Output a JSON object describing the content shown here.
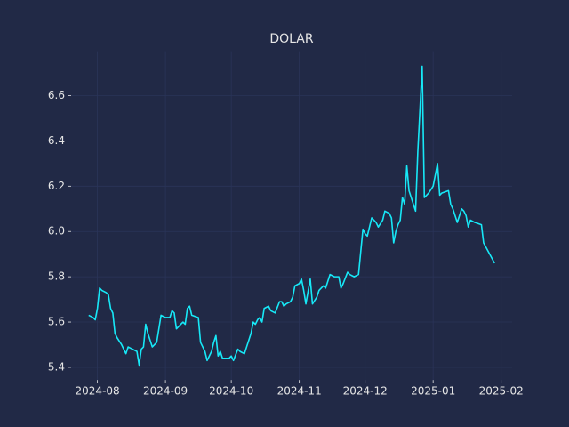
{
  "chart_data": {
    "type": "line",
    "title": "DOLAR",
    "x": [
      "2024-07-28",
      "2024-07-30",
      "2024-07-31",
      "2024-08-01",
      "2024-08-02",
      "2024-08-03",
      "2024-08-05",
      "2024-08-06",
      "2024-08-07",
      "2024-08-08",
      "2024-08-09",
      "2024-08-10",
      "2024-08-12",
      "2024-08-14",
      "2024-08-15",
      "2024-08-17",
      "2024-08-19",
      "2024-08-20",
      "2024-08-21",
      "2024-08-22",
      "2024-08-23",
      "2024-08-24",
      "2024-08-26",
      "2024-08-28",
      "2024-08-30",
      "2024-09-01",
      "2024-09-03",
      "2024-09-04",
      "2024-09-05",
      "2024-09-06",
      "2024-09-08",
      "2024-09-09",
      "2024-09-10",
      "2024-09-11",
      "2024-09-12",
      "2024-09-13",
      "2024-09-16",
      "2024-09-17",
      "2024-09-19",
      "2024-09-20",
      "2024-09-22",
      "2024-09-23",
      "2024-09-24",
      "2024-09-25",
      "2024-09-26",
      "2024-09-27",
      "2024-09-29",
      "2024-09-30",
      "2024-10-01",
      "2024-10-02",
      "2024-10-04",
      "2024-10-05",
      "2024-10-07",
      "2024-10-10",
      "2024-10-11",
      "2024-10-12",
      "2024-10-13",
      "2024-10-14",
      "2024-10-15",
      "2024-10-16",
      "2024-10-18",
      "2024-10-19",
      "2024-10-21",
      "2024-10-23",
      "2024-10-24",
      "2024-10-25",
      "2024-10-26",
      "2024-10-28",
      "2024-10-29",
      "2024-10-30",
      "2024-11-01",
      "2024-11-02",
      "2024-11-03",
      "2024-11-04",
      "2024-11-06",
      "2024-11-07",
      "2024-11-09",
      "2024-11-10",
      "2024-11-12",
      "2024-11-13",
      "2024-11-15",
      "2024-11-17",
      "2024-11-19",
      "2024-11-20",
      "2024-11-21",
      "2024-11-23",
      "2024-11-24",
      "2024-11-26",
      "2024-11-28",
      "2024-11-30",
      "2024-12-01",
      "2024-12-02",
      "2024-12-04",
      "2024-12-05",
      "2024-12-06",
      "2024-12-07",
      "2024-12-09",
      "2024-12-10",
      "2024-12-12",
      "2024-12-13",
      "2024-12-14",
      "2024-12-15",
      "2024-12-16",
      "2024-12-17",
      "2024-12-18",
      "2024-12-19",
      "2024-12-20",
      "2024-12-21",
      "2024-12-22",
      "2024-12-24",
      "2024-12-25",
      "2024-12-27",
      "2024-12-28",
      "2024-12-30",
      "2025-01-01",
      "2025-01-03",
      "2025-01-04",
      "2025-01-05",
      "2025-01-08",
      "2025-01-09",
      "2025-01-10",
      "2025-01-12",
      "2025-01-14",
      "2025-01-15",
      "2025-01-16",
      "2025-01-17",
      "2025-01-18",
      "2025-01-20",
      "2025-01-23",
      "2025-01-24",
      "2025-01-29"
    ],
    "values": [
      5.63,
      5.62,
      5.61,
      5.66,
      5.75,
      5.74,
      5.73,
      5.72,
      5.66,
      5.64,
      5.55,
      5.53,
      5.5,
      5.46,
      5.49,
      5.48,
      5.47,
      5.41,
      5.48,
      5.49,
      5.59,
      5.55,
      5.49,
      5.51,
      5.63,
      5.62,
      5.62,
      5.65,
      5.64,
      5.57,
      5.59,
      5.6,
      5.59,
      5.66,
      5.67,
      5.63,
      5.62,
      5.51,
      5.47,
      5.43,
      5.47,
      5.51,
      5.54,
      5.45,
      5.47,
      5.44,
      5.44,
      5.44,
      5.45,
      5.43,
      5.48,
      5.47,
      5.46,
      5.55,
      5.6,
      5.59,
      5.61,
      5.62,
      5.6,
      5.66,
      5.67,
      5.65,
      5.64,
      5.69,
      5.69,
      5.67,
      5.68,
      5.69,
      5.71,
      5.76,
      5.77,
      5.79,
      5.74,
      5.68,
      5.79,
      5.68,
      5.71,
      5.74,
      5.76,
      5.75,
      5.81,
      5.8,
      5.8,
      5.75,
      5.77,
      5.82,
      5.81,
      5.8,
      5.81,
      6.01,
      5.99,
      5.98,
      6.06,
      6.05,
      6.04,
      6.02,
      6.05,
      6.09,
      6.08,
      6.06,
      5.95,
      6.0,
      6.03,
      6.05,
      6.15,
      6.12,
      6.29,
      6.18,
      6.15,
      6.09,
      6.35,
      6.73,
      6.15,
      6.17,
      6.2,
      6.3,
      6.16,
      6.17,
      6.18,
      6.12,
      6.1,
      6.04,
      6.1,
      6.09,
      6.07,
      6.02,
      6.05,
      6.04,
      6.03,
      5.95,
      5.86
    ],
    "color": "#17e8f7",
    "xlim": [
      "2024-07-20",
      "2025-02-06"
    ],
    "xticks": [
      {
        "value": "2024-08-01",
        "label": "2024-08"
      },
      {
        "value": "2024-09-01",
        "label": "2024-09"
      },
      {
        "value": "2024-10-01",
        "label": "2024-10"
      },
      {
        "value": "2024-11-01",
        "label": "2024-11"
      },
      {
        "value": "2024-12-01",
        "label": "2024-12"
      },
      {
        "value": "2025-01-01",
        "label": "2025-01"
      },
      {
        "value": "2025-02-01",
        "label": "2025-02"
      }
    ],
    "ylim": [
      5.344,
      6.796
    ],
    "yticks": [
      5.4,
      5.6,
      5.8,
      {
        "value": 6,
        "label": "6.0"
      },
      6.2,
      6.4,
      6.6
    ],
    "grid": true
  }
}
